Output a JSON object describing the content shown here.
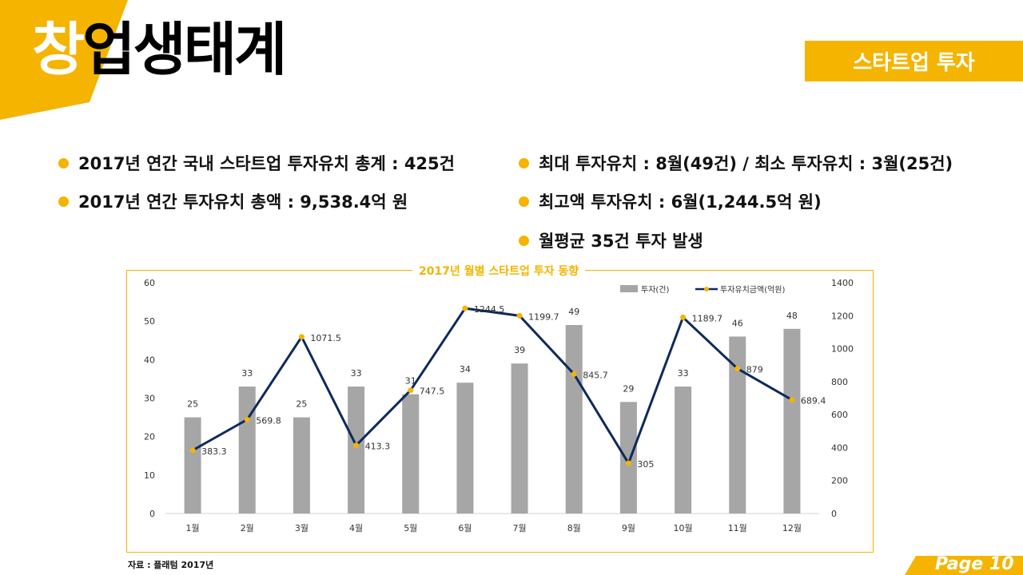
{
  "header": {
    "title_first": "창",
    "title_rest": "업생태계",
    "section_label": "스타트업 투자"
  },
  "bullets": {
    "left": [
      "2017년 연간 국내 스타트업 투자유치 총계 : 425건",
      "2017년 연간 투자유치 총액 : 9,538.4억 원"
    ],
    "right": [
      "최대 투자유치 : 8월(49건) / 최소 투자유치 : 3월(25건)",
      "최고액 투자유치 : 6월(1,244.5억 원)",
      "월평균 35건 투자 발생"
    ]
  },
  "chart_data": {
    "type": "bar",
    "title": "2017년 월별 스타트업 투자 동향",
    "categories": [
      "1월",
      "2월",
      "3월",
      "4월",
      "5월",
      "6월",
      "7월",
      "8월",
      "9월",
      "10월",
      "11월",
      "12월"
    ],
    "series": [
      {
        "name": "투자(건)",
        "type": "bar",
        "axis": "left",
        "color": "#a6a6a6",
        "values": [
          25,
          33,
          25,
          33,
          31,
          34,
          39,
          49,
          29,
          33,
          46,
          48
        ]
      },
      {
        "name": "투자유치금액(억원)",
        "type": "line",
        "axis": "right",
        "color": "#0d2a5c",
        "marker_color": "#f4b400",
        "values": [
          383.3,
          569.8,
          1071.5,
          413.3,
          747.5,
          1244.5,
          1199.7,
          845.7,
          305,
          1189.7,
          879,
          689.4
        ]
      }
    ],
    "y_left": {
      "min": 0,
      "max": 60,
      "ticks": [
        0,
        10,
        20,
        30,
        40,
        50,
        60
      ]
    },
    "y_right": {
      "min": 0,
      "max": 1400,
      "ticks": [
        0,
        200,
        400,
        600,
        800,
        1000,
        1200,
        1400
      ]
    },
    "legend": "top-right",
    "grid": false
  },
  "source": "자료 : 플래텀 2017년",
  "page_label": "Page 10",
  "colors": {
    "accent": "#f4b400",
    "bar": "#a6a6a6",
    "line": "#0d2a5c"
  }
}
